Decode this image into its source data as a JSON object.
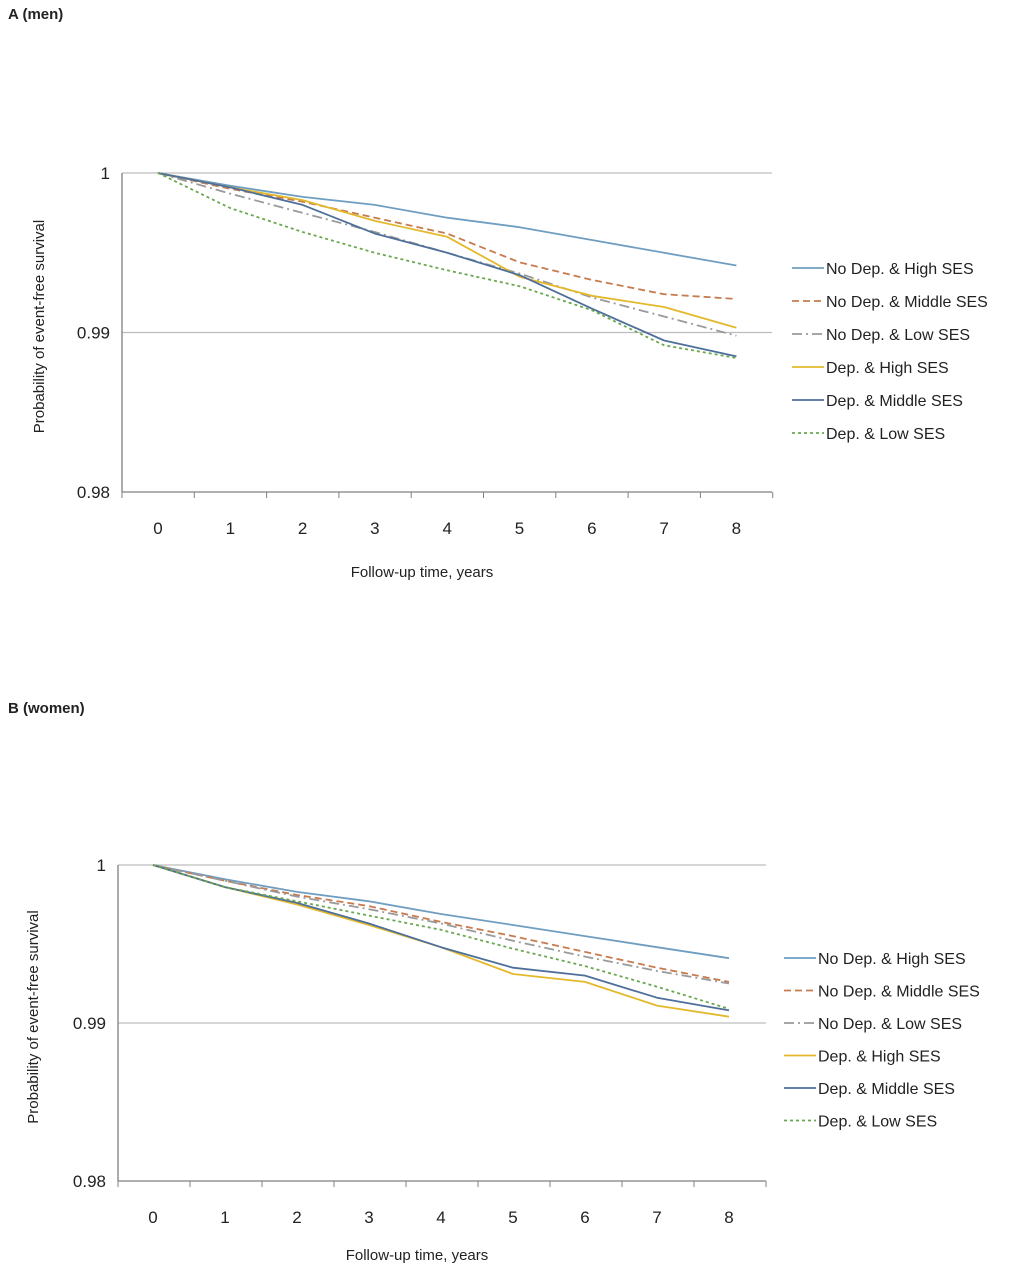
{
  "chart_data": [
    {
      "panel_label": "A (men)",
      "type": "line",
      "xlabel": "Follow-up time, years",
      "ylabel": "Probability of event-free survival",
      "x": [
        0,
        1,
        2,
        3,
        4,
        5,
        6,
        7,
        8
      ],
      "x_ticks": [
        "0",
        "1",
        "2",
        "3",
        "4",
        "5",
        "6",
        "7",
        "8"
      ],
      "y_ticks": [
        "1",
        "0.99",
        "0.98"
      ],
      "y_tick_values": [
        1,
        0.99,
        0.98
      ],
      "ylim": [
        0.98,
        1
      ],
      "grid": "horizontal",
      "legend_position": "right",
      "series": [
        {
          "name": "No Dep. & High SES",
          "color": "#6f9ec1",
          "dash": "solid",
          "values": [
            1,
            0.9992,
            0.9985,
            0.998,
            0.9972,
            0.9966,
            0.9958,
            0.995,
            0.9942
          ]
        },
        {
          "name": "No Dep. & Middle SES",
          "color": "#c77b4f",
          "dash": "dash",
          "values": [
            1,
            0.999,
            0.9982,
            0.9972,
            0.9962,
            0.9944,
            0.9933,
            0.9924,
            0.9921
          ]
        },
        {
          "name": "No Dep. & Low SES",
          "color": "#9a9a9a",
          "dash": "dashdot",
          "values": [
            1,
            0.9987,
            0.9975,
            0.9963,
            0.995,
            0.9937,
            0.9922,
            0.991,
            0.9898
          ]
        },
        {
          "name": "Dep. & High SES",
          "color": "#e3b92b",
          "dash": "solid",
          "values": [
            1,
            0.9991,
            0.9983,
            0.997,
            0.996,
            0.9935,
            0.9923,
            0.9916,
            0.9903
          ]
        },
        {
          "name": "Dep. & Middle SES",
          "color": "#4f6f9b",
          "dash": "solid",
          "values": [
            1,
            0.9991,
            0.998,
            0.9962,
            0.995,
            0.9936,
            0.9915,
            0.9895,
            0.9885
          ]
        },
        {
          "name": "Dep. & Low SES",
          "color": "#6aa84f",
          "dash": "dot",
          "values": [
            1,
            0.9978,
            0.9963,
            0.995,
            0.9939,
            0.9929,
            0.9914,
            0.9892,
            0.9884
          ]
        }
      ]
    },
    {
      "panel_label": "B (women)",
      "type": "line",
      "xlabel": "Follow-up time, years",
      "ylabel": "Probability of event-free survival",
      "x": [
        0,
        1,
        2,
        3,
        4,
        5,
        6,
        7,
        8
      ],
      "x_ticks": [
        "0",
        "1",
        "2",
        "3",
        "4",
        "5",
        "6",
        "7",
        "8"
      ],
      "y_ticks": [
        "1",
        "0.99",
        "0.98"
      ],
      "y_tick_values": [
        1,
        0.99,
        0.98
      ],
      "ylim": [
        0.98,
        1
      ],
      "grid": "horizontal",
      "legend_position": "right",
      "series": [
        {
          "name": "No Dep. & High SES",
          "color": "#6f9ec1",
          "dash": "solid",
          "values": [
            1,
            0.9991,
            0.9983,
            0.9977,
            0.9969,
            0.9962,
            0.9955,
            0.9948,
            0.9941
          ]
        },
        {
          "name": "No Dep. & Middle SES",
          "color": "#c77b4f",
          "dash": "dash",
          "values": [
            1,
            0.999,
            0.9981,
            0.9974,
            0.9964,
            0.9955,
            0.9945,
            0.9935,
            0.9926
          ]
        },
        {
          "name": "No Dep. & Low SES",
          "color": "#9a9a9a",
          "dash": "dashdot",
          "values": [
            1,
            0.999,
            0.998,
            0.9972,
            0.9963,
            0.9952,
            0.9942,
            0.9933,
            0.9925
          ]
        },
        {
          "name": "Dep. & High SES",
          "color": "#e3b92b",
          "dash": "solid",
          "values": [
            1,
            0.9986,
            0.9975,
            0.9962,
            0.9948,
            0.9931,
            0.9926,
            0.9911,
            0.9904
          ]
        },
        {
          "name": "Dep. & Middle SES",
          "color": "#4f6f9b",
          "dash": "solid",
          "values": [
            1,
            0.9986,
            0.9976,
            0.9963,
            0.9948,
            0.9935,
            0.993,
            0.9916,
            0.9908
          ]
        },
        {
          "name": "Dep. & Low SES",
          "color": "#6aa84f",
          "dash": "dot",
          "values": [
            1,
            0.9986,
            0.9977,
            0.9968,
            0.9959,
            0.9947,
            0.9936,
            0.9923,
            0.9909
          ]
        }
      ]
    }
  ]
}
